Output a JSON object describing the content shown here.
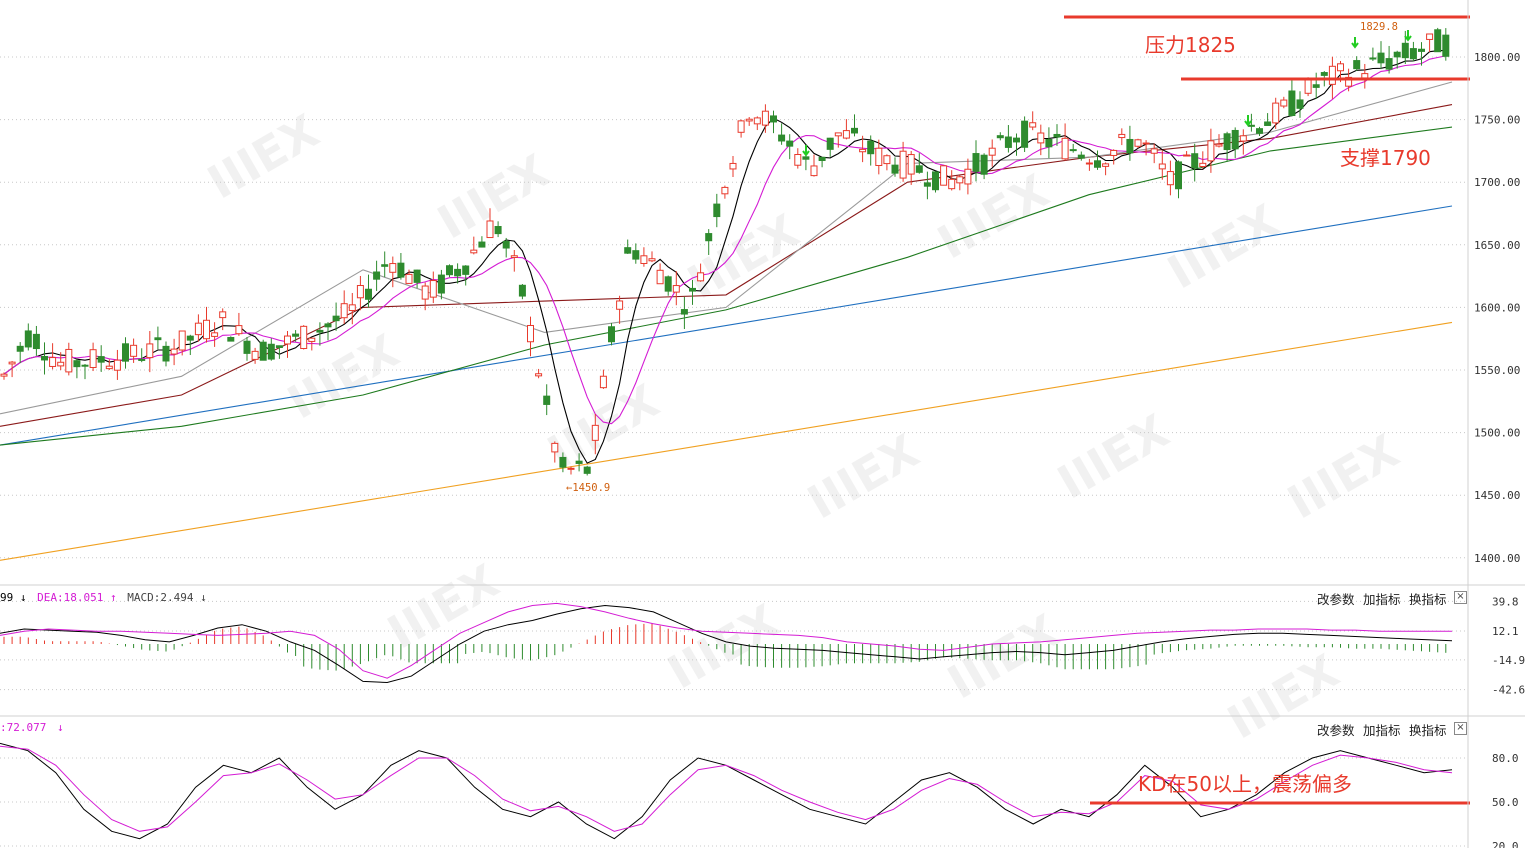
{
  "macd_header": {
    "k_tail": "99",
    "k_arrow": "↓",
    "dea_label": "DEA:",
    "dea_value": "18.051",
    "dea_arrow": "↑",
    "macd_label": "MACD:",
    "macd_value": "2.494",
    "macd_arrow": "↓"
  },
  "kd_header": {
    "value": ":72.077",
    "arrow": "↓"
  },
  "buttons": {
    "params": "改参数",
    "add": "加指标",
    "switch": "换指标",
    "close": "×"
  },
  "colors": {
    "up": "#e83a2c",
    "down": "#2e8b2e",
    "ma5": "#000000",
    "ma10": "#d41cd4",
    "ma20": "#9a9a9a",
    "ma30": "#8b1a1a",
    "ma60": "#1e7a1e",
    "ma120": "#1f6fbf",
    "ma250": "#f0a020",
    "annotation": "#e83a2c"
  },
  "chart_data": [
    {
      "type": "candlestick",
      "title": "",
      "ylim": [
        1380,
        1840
      ],
      "yticks": [
        "1800.00",
        "1750.00",
        "1700.00",
        "1650.00",
        "1600.00",
        "1550.00",
        "1500.00",
        "1450.00",
        "1400.00"
      ],
      "high_marker": "1829.8",
      "low_marker": "1450.9",
      "annotations": [
        {
          "text": "压力1825",
          "level": 1830
        },
        {
          "text": "支撑1790",
          "level": 1782
        }
      ],
      "moving_averages": [
        {
          "color": "#f0a020",
          "start": 1398,
          "end": 1588
        },
        {
          "color": "#1f6fbf",
          "start": 1490,
          "end": 1681
        },
        {
          "color": "#1e7a1e",
          "points": [
            1490,
            1505,
            1530,
            1570,
            1598,
            1640,
            1690,
            1725,
            1744
          ]
        },
        {
          "color": "#8b1a1a",
          "points": [
            1505,
            1530,
            1600,
            1605,
            1610,
            1700,
            1720,
            1735,
            1762
          ]
        },
        {
          "color": "#9a9a9a",
          "points": [
            1515,
            1545,
            1630,
            1580,
            1600,
            1715,
            1720,
            1740,
            1780
          ]
        }
      ]
    },
    {
      "type": "bar",
      "title": "",
      "yticks": [
        "39.8",
        "12.1",
        "-14.9",
        "-42.6"
      ],
      "ylim": [
        -42.6,
        39.8
      ],
      "series": [
        {
          "values": [
            10,
            14,
            13,
            12,
            11,
            8,
            4,
            2,
            8,
            15,
            18,
            12,
            2,
            -6,
            -20,
            -35,
            -36,
            -30,
            -15,
            0,
            12,
            18,
            22,
            28,
            33,
            36,
            34,
            30,
            20,
            10,
            2,
            -2,
            -4,
            -5,
            -6,
            -8,
            -10,
            -12,
            -14,
            -12,
            -10,
            -8,
            -7,
            -8,
            -10,
            -8,
            -6,
            -2,
            2,
            5,
            7,
            9,
            10,
            10,
            9,
            8,
            7,
            6,
            5,
            4,
            3
          ]
        },
        {
          "values": [
            8,
            12,
            14,
            13,
            12,
            12,
            11,
            10,
            9,
            8,
            9,
            10,
            12,
            8,
            -5,
            -25,
            -32,
            -20,
            -5,
            10,
            20,
            30,
            36,
            38,
            35,
            30,
            24,
            19,
            15,
            12,
            11,
            10,
            9,
            8,
            6,
            2,
            0,
            -2,
            -5,
            -6,
            -3,
            0,
            1,
            2,
            4,
            6,
            8,
            10,
            11,
            12,
            13,
            13,
            14,
            14,
            14,
            13,
            13,
            12,
            12,
            12,
            12
          ]
        }
      ]
    },
    {
      "type": "line",
      "title": "",
      "yticks": [
        "80.0",
        "50.0",
        "20.0"
      ],
      "ylim": [
        15,
        100
      ],
      "annotation": {
        "text": "KD在50以上，震荡偏多",
        "level": 50
      },
      "series": [
        {
          "values": [
            90,
            85,
            70,
            45,
            30,
            25,
            35,
            60,
            75,
            70,
            80,
            60,
            45,
            55,
            75,
            85,
            80,
            60,
            45,
            40,
            50,
            35,
            25,
            40,
            65,
            80,
            75,
            65,
            55,
            45,
            40,
            35,
            50,
            65,
            70,
            60,
            45,
            35,
            45,
            40,
            55,
            75,
            60,
            40,
            45,
            55,
            70,
            80,
            85,
            80,
            75,
            70,
            72
          ]
        },
        {
          "values": [
            88,
            86,
            75,
            55,
            38,
            30,
            33,
            50,
            68,
            70,
            76,
            65,
            52,
            55,
            68,
            80,
            80,
            68,
            52,
            44,
            47,
            40,
            30,
            35,
            55,
            72,
            75,
            68,
            58,
            50,
            43,
            38,
            45,
            58,
            66,
            62,
            50,
            40,
            43,
            42,
            50,
            68,
            64,
            48,
            45,
            52,
            64,
            75,
            82,
            80,
            77,
            72,
            70
          ]
        }
      ]
    }
  ]
}
